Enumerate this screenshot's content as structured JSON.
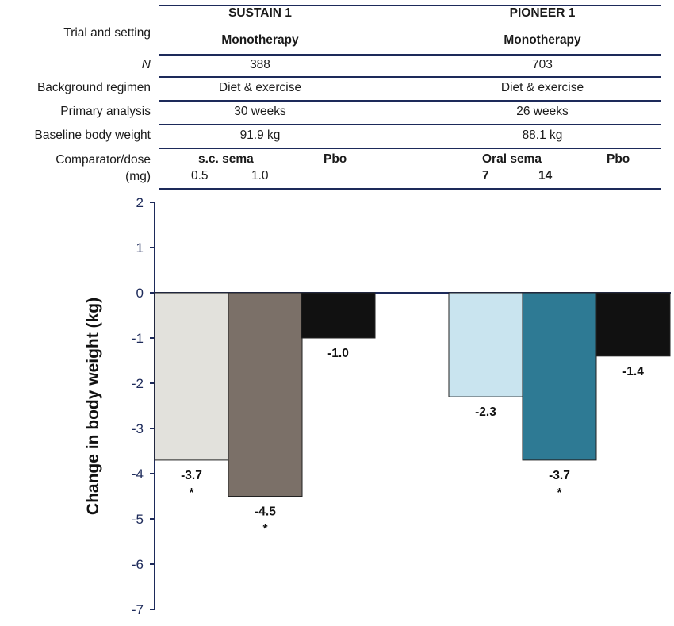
{
  "table": {
    "row_labels": {
      "trial": "Trial and setting",
      "n": "N",
      "background": "Background regimen",
      "primary": "Primary analysis",
      "baseline": "Baseline body weight",
      "comparator": "Comparator/dose",
      "mg": "(mg)"
    },
    "sustain": {
      "name": "SUSTAIN 1",
      "setting": "Monotherapy",
      "n": "388",
      "background": "Diet & exercise",
      "primary": "30 weeks",
      "baseline": "91.9 kg",
      "comparator": "s.c. sema",
      "dose_a": "0.5",
      "dose_b": "1.0",
      "pbo": "Pbo"
    },
    "pioneer": {
      "name": "PIONEER 1",
      "setting": "Monotherapy",
      "n": "703",
      "background": "Diet & exercise",
      "primary": "26 weeks",
      "baseline": "88.1 kg",
      "comparator": "Oral sema",
      "dose_a": "7",
      "dose_b": "14",
      "pbo": "Pbo"
    }
  },
  "chart_data": {
    "type": "bar",
    "ylabel": "Change in body weight (kg)",
    "ylim": [
      -7,
      2
    ],
    "yticks": [
      2,
      1,
      0,
      -1,
      -2,
      -3,
      -4,
      -5,
      -6,
      -7
    ],
    "groups": [
      "SUSTAIN 1",
      "PIONEER 1"
    ],
    "bars": [
      {
        "group": "SUSTAIN 1",
        "arm": "s.c. sema 0.5 mg",
        "value": -3.7,
        "label": "-3.7",
        "significant": true,
        "color": "#e2e1dc"
      },
      {
        "group": "SUSTAIN 1",
        "arm": "s.c. sema 1.0 mg",
        "value": -4.5,
        "label": "-4.5",
        "significant": true,
        "color": "#7b7068"
      },
      {
        "group": "SUSTAIN 1",
        "arm": "Pbo",
        "value": -1.0,
        "label": "-1.0",
        "significant": false,
        "color": "#111111"
      },
      {
        "group": "PIONEER 1",
        "arm": "Oral sema 7 mg",
        "value": -2.3,
        "label": "-2.3",
        "significant": false,
        "color": "#c9e4ef"
      },
      {
        "group": "PIONEER 1",
        "arm": "Oral sema 14 mg",
        "value": -3.7,
        "label": "-3.7",
        "significant": true,
        "color": "#2e7a94"
      },
      {
        "group": "PIONEER 1",
        "arm": "Pbo",
        "value": -1.4,
        "label": "-1.4",
        "significant": false,
        "color": "#111111"
      }
    ],
    "significance_marker": "*"
  }
}
